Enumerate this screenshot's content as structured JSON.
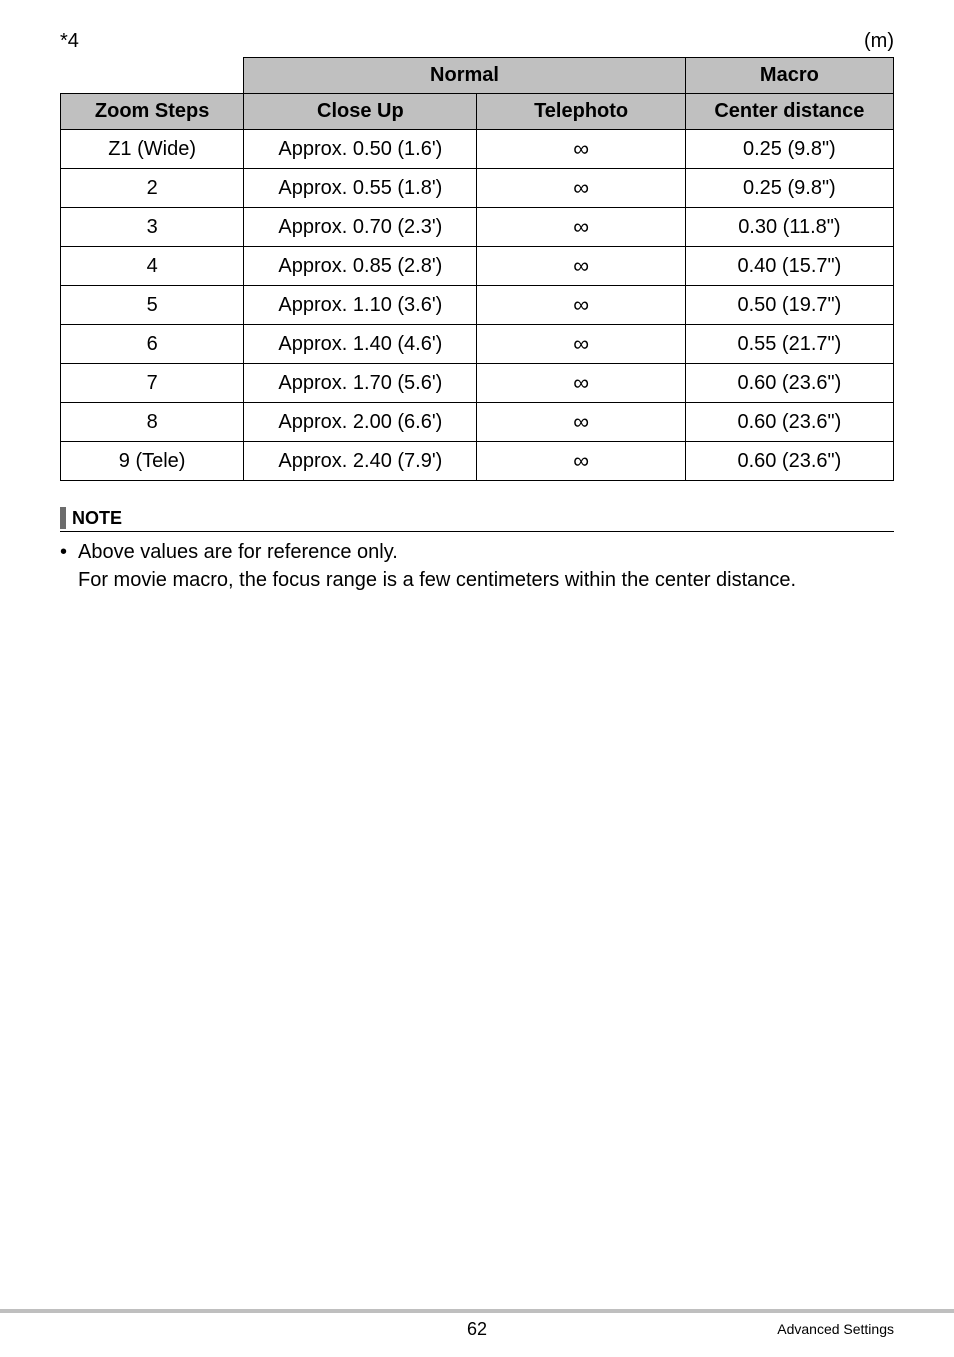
{
  "marker": "*4",
  "unit_label": "(m)",
  "table": {
    "header_group_left": "Normal",
    "header_group_right": "Macro",
    "columns": [
      "Zoom Steps",
      "Close Up",
      "Telephoto",
      "Center distance"
    ],
    "rows": [
      {
        "zoom": "Z1 (Wide)",
        "close": "Approx. 0.50 (1.6')",
        "tele": "∞",
        "macro": "0.25 (9.8\")"
      },
      {
        "zoom": "2",
        "close": "Approx. 0.55 (1.8')",
        "tele": "∞",
        "macro": "0.25 (9.8\")"
      },
      {
        "zoom": "3",
        "close": "Approx. 0.70 (2.3')",
        "tele": "∞",
        "macro": "0.30 (11.8\")"
      },
      {
        "zoom": "4",
        "close": "Approx. 0.85 (2.8')",
        "tele": "∞",
        "macro": "0.40 (15.7\")"
      },
      {
        "zoom": "5",
        "close": "Approx. 1.10 (3.6')",
        "tele": "∞",
        "macro": "0.50 (19.7\")"
      },
      {
        "zoom": "6",
        "close": "Approx. 1.40 (4.6')",
        "tele": "∞",
        "macro": "0.55 (21.7\")"
      },
      {
        "zoom": "7",
        "close": "Approx. 1.70 (5.6')",
        "tele": "∞",
        "macro": "0.60 (23.6\")"
      },
      {
        "zoom": "8",
        "close": "Approx. 2.00 (6.6')",
        "tele": "∞",
        "macro": "0.60 (23.6\")"
      },
      {
        "zoom": "9 (Tele)",
        "close": "Approx. 2.40 (7.9')",
        "tele": "∞",
        "macro": "0.60 (23.6\")"
      }
    ]
  },
  "note": {
    "label": "NOTE",
    "line1": "Above values are for reference only.",
    "line2": "For movie macro, the focus range is a few centimeters within the center distance."
  },
  "footer": {
    "page": "62",
    "section": "Advanced Settings"
  }
}
